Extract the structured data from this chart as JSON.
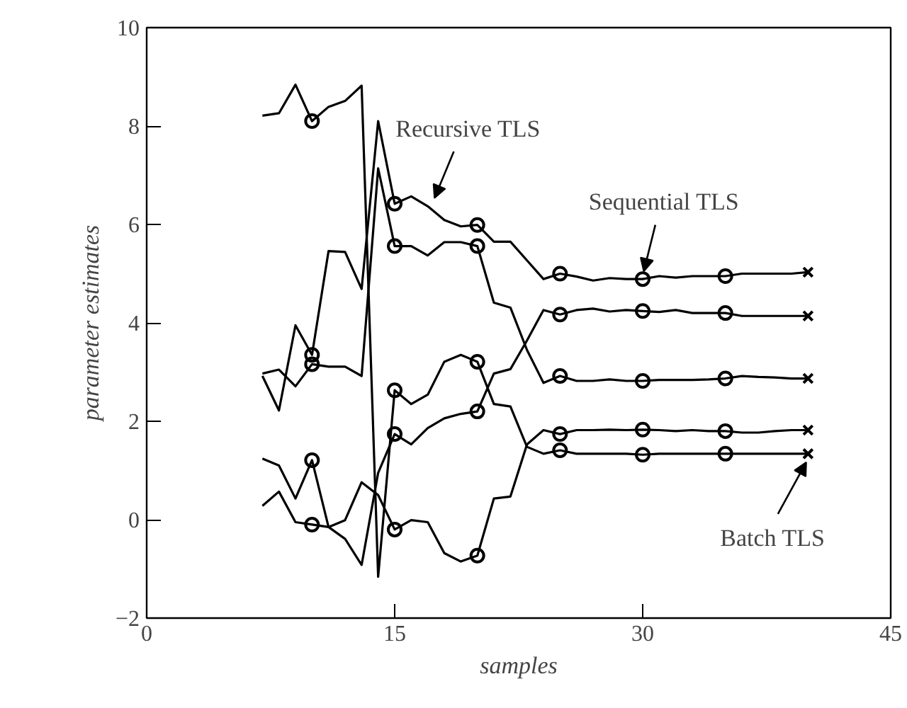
{
  "chart_data": {
    "type": "line",
    "xlabel": "samples",
    "ylabel": "parameter estimates",
    "xlim": [
      0,
      45
    ],
    "xticks": [
      0,
      15,
      30,
      45
    ],
    "ylim": [
      -2,
      10
    ],
    "yticks": [
      -2,
      0,
      2,
      4,
      6,
      8,
      10
    ],
    "grid": false,
    "x": [
      7,
      8,
      9,
      10,
      11,
      12,
      13,
      14,
      15,
      16,
      17,
      18,
      19,
      20,
      21,
      22,
      23,
      24,
      25,
      26,
      27,
      28,
      29,
      30,
      31,
      32,
      33,
      34,
      35,
      36,
      37,
      38,
      39,
      40
    ],
    "series": [
      {
        "color": "#000000",
        "values": [
          8.21,
          8.26,
          8.84,
          8.1,
          8.39,
          8.51,
          8.82,
          -1.16,
          2.63,
          2.35,
          2.54,
          3.21,
          3.35,
          3.21,
          2.35,
          2.3,
          1.48,
          1.34,
          1.41,
          1.34,
          1.34,
          1.34,
          1.34,
          1.32,
          1.34,
          1.34,
          1.34,
          1.34,
          1.34,
          1.34,
          1.34,
          1.34,
          1.34,
          1.34
        ]
      },
      {
        "color": "#000000",
        "values": [
          2.92,
          2.22,
          3.95,
          3.35,
          5.46,
          5.44,
          4.69,
          8.1,
          6.42,
          6.57,
          6.37,
          6.09,
          5.96,
          5.99,
          5.65,
          5.65,
          5.27,
          4.89,
          5.0,
          4.94,
          4.86,
          4.91,
          4.89,
          4.89,
          4.95,
          4.92,
          4.95,
          4.95,
          4.95,
          5.0,
          5.0,
          5.0,
          5.0,
          5.03
        ]
      },
      {
        "color": "#000000",
        "values": [
          2.97,
          3.05,
          2.71,
          3.16,
          3.11,
          3.11,
          2.92,
          7.14,
          5.56,
          5.56,
          5.37,
          5.64,
          5.64,
          5.56,
          4.41,
          4.31,
          3.45,
          2.78,
          2.92,
          2.82,
          2.82,
          2.85,
          2.82,
          2.82,
          2.84,
          2.84,
          2.84,
          2.85,
          2.87,
          2.92,
          2.9,
          2.89,
          2.87,
          2.87
        ]
      },
      {
        "color": "#000000",
        "values": [
          1.24,
          1.1,
          0.43,
          1.21,
          -0.15,
          -0.39,
          -0.92,
          0.95,
          1.74,
          1.53,
          1.86,
          2.06,
          2.15,
          2.2,
          2.97,
          3.06,
          3.64,
          4.26,
          4.17,
          4.26,
          4.29,
          4.23,
          4.26,
          4.24,
          4.22,
          4.26,
          4.2,
          4.2,
          4.2,
          4.14,
          4.14,
          4.14,
          4.14,
          4.14
        ]
      },
      {
        "color": "#000000",
        "values": [
          0.28,
          0.57,
          -0.05,
          -0.1,
          -0.15,
          -0.01,
          0.76,
          0.5,
          -0.2,
          -0.01,
          -0.05,
          -0.68,
          -0.85,
          -0.73,
          0.43,
          0.47,
          1.53,
          1.82,
          1.74,
          1.82,
          1.82,
          1.83,
          1.82,
          1.83,
          1.82,
          1.8,
          1.82,
          1.8,
          1.8,
          1.77,
          1.77,
          1.8,
          1.82,
          1.82
        ]
      },
      {
        "type": "scatter",
        "marker": "circle",
        "color": "#000000",
        "x": [
          10,
          10,
          10,
          10,
          10,
          15,
          15,
          15,
          15,
          15,
          20,
          20,
          20,
          20,
          20,
          25,
          25,
          25,
          25,
          25,
          30,
          30,
          30,
          30,
          30,
          35,
          35,
          35,
          35,
          35
        ],
        "values": [
          8.1,
          3.35,
          3.16,
          1.21,
          -0.1,
          2.63,
          6.42,
          5.56,
          1.74,
          -0.2,
          3.21,
          5.99,
          5.56,
          2.2,
          -0.73,
          1.41,
          5.0,
          2.92,
          4.17,
          1.74,
          1.32,
          4.89,
          2.82,
          4.24,
          1.83,
          1.34,
          4.95,
          2.87,
          4.2,
          1.8
        ]
      },
      {
        "type": "scatter",
        "marker": "cross",
        "color": "#000000",
        "x": [
          40,
          40,
          40,
          40,
          40
        ],
        "values": [
          1.34,
          5.03,
          2.87,
          4.14,
          1.82
        ]
      }
    ],
    "annotations": [
      {
        "text": "Recursive TLS",
        "x": 17.3,
        "y": 6.38
      },
      {
        "text": "Sequential TLS",
        "x": 30,
        "y": 4.89
      },
      {
        "text": "Batch TLS",
        "x": 40,
        "y": 1.34
      }
    ]
  }
}
